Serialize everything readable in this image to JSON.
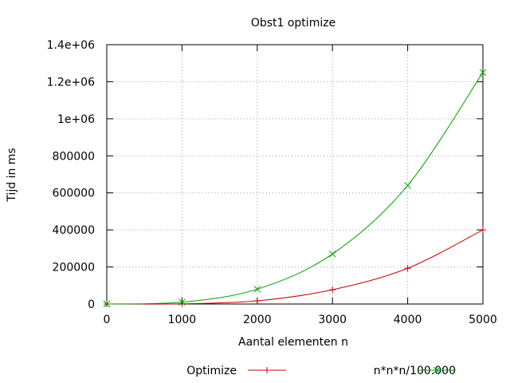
{
  "chart_data": {
    "type": "line",
    "title": "Obst1 optimize",
    "xlabel": "Aantal elementen n",
    "ylabel": "Tijd in ms",
    "xlim": [
      0,
      5000
    ],
    "ylim": [
      0,
      1400000
    ],
    "x_ticks": [
      0,
      1000,
      2000,
      3000,
      4000,
      5000
    ],
    "x_tick_labels": [
      "0",
      "1000",
      "2000",
      "3000",
      "4000",
      "5000"
    ],
    "y_ticks": [
      0,
      200000,
      400000,
      600000,
      800000,
      1000000,
      1200000,
      1400000
    ],
    "y_tick_labels": [
      "0",
      "200000",
      "400000",
      "600000",
      "800000",
      "1e+06",
      "1.2e+06",
      "1.4e+06"
    ],
    "grid": true,
    "legend_position": "bottom",
    "series": [
      {
        "name": "Optimize",
        "color": "#cc0000",
        "marker": "plus",
        "x": [
          0,
          1000,
          2000,
          3000,
          4000,
          5000
        ],
        "values": [
          0,
          1000,
          17000,
          77000,
          193000,
          400000
        ]
      },
      {
        "name": "n*n*n/100.000",
        "color": "#00a000",
        "marker": "cross",
        "x": [
          0,
          1000,
          2000,
          3000,
          4000,
          5000
        ],
        "values": [
          0,
          10000,
          80000,
          270000,
          640000,
          1250000
        ]
      }
    ]
  }
}
